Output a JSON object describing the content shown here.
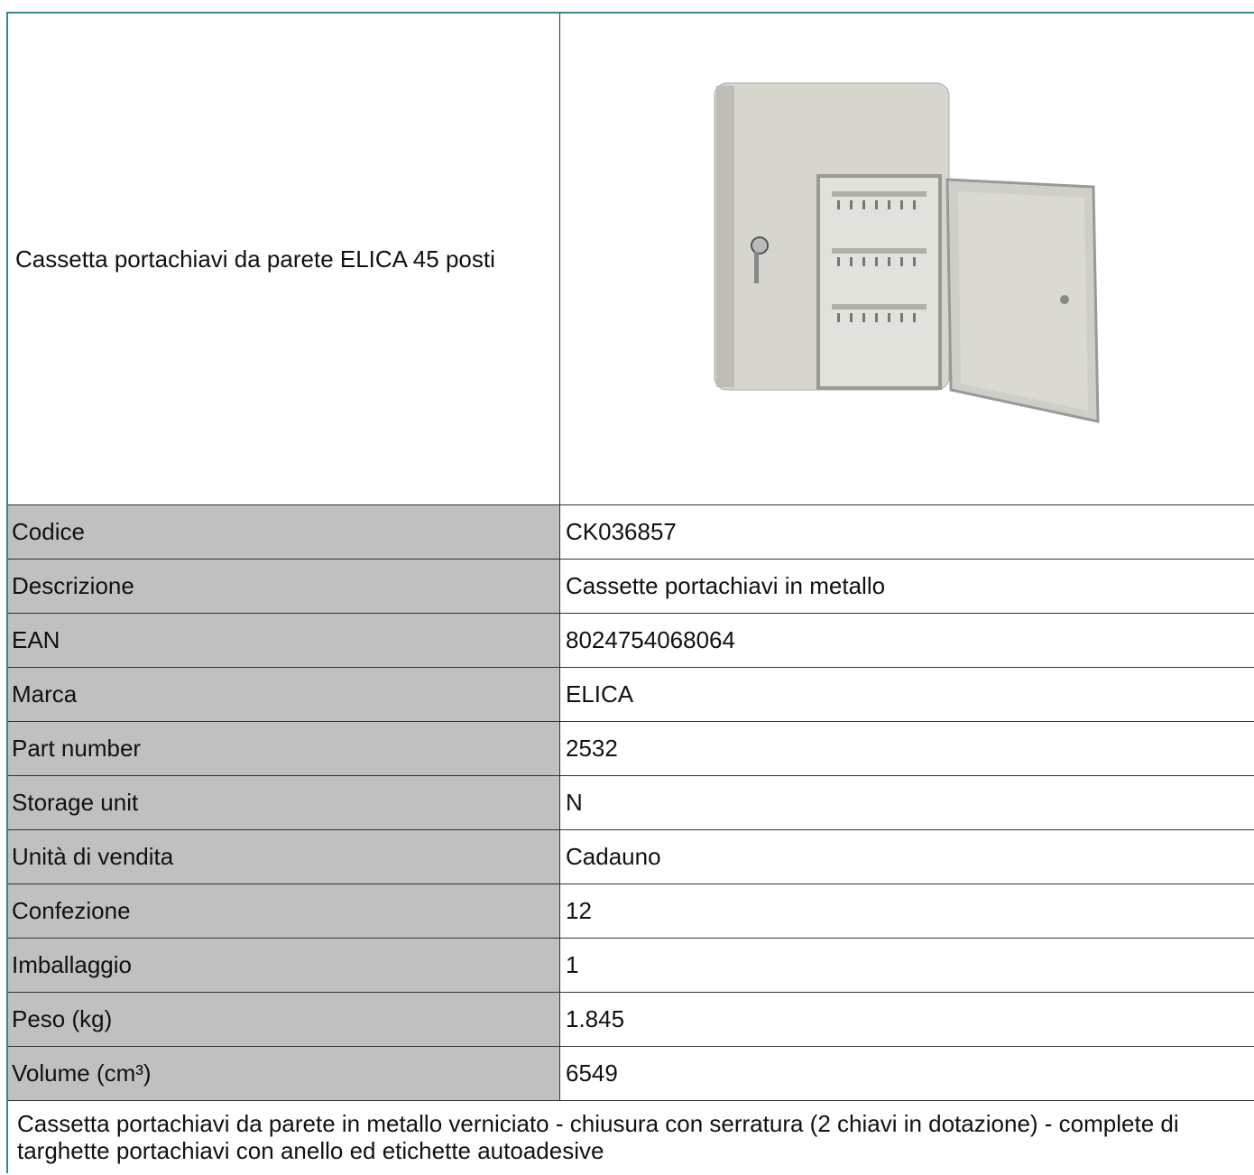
{
  "title": "Cassetta portachiavi da parete ELICA 45 posti",
  "rows": [
    [
      "Codice",
      "CK036857"
    ],
    [
      "Descrizione",
      "Cassette portachiavi in metallo"
    ],
    [
      "EAN",
      "8024754068064"
    ],
    [
      "Marca",
      "ELICA"
    ],
    [
      "Part number",
      "2532"
    ],
    [
      "Storage unit",
      "N"
    ],
    [
      "Unità di vendita",
      "Cadauno"
    ],
    [
      "Confezione",
      "12"
    ],
    [
      "Imballaggio",
      "1"
    ],
    [
      "Peso (kg)",
      "1.845"
    ],
    [
      "Volume (cm³)",
      "6549"
    ]
  ],
  "description": "Cassetta portachiavi da parete in metallo verniciato - chiusura con serratura (2 chiavi in dotazione) - complete di targhette portachiavi con anello ed etichette autoadesive"
}
